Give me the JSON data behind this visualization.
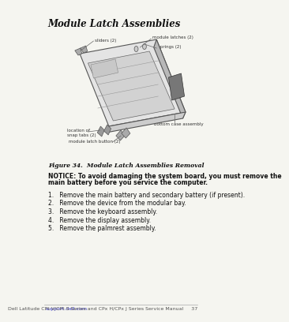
{
  "title": "Module Latch Assemblies",
  "figure_caption": "Figure 34.  Module Latch Assemblies Removal",
  "notice_text": "NOTICE: To avoid damaging the system board, you must remove the\nmain battery before you service the computer.",
  "steps": [
    "1.   Remove the main battery and secondary battery (if present).",
    "2.   Remove the device from the modular bay.",
    "3.   Remove the keyboard assembly.",
    "4.   Remove the display assembly.",
    "5.   Remove the palmrest assembly."
  ],
  "footer_left": "support.dell.com",
  "footer_right": "Dell Latitude CPt V/CPt S Series and CPx H/CPx J Series Service Manual     37",
  "bg_color": "#f5f5f0",
  "labels": {
    "sliders": "sliders (2)",
    "module_latches": "module latches (2)",
    "springs": "springs (2)",
    "location_snap": "location of\nsnap tabs (2)",
    "module_latch_button": "module latch button (2)",
    "bottom_case": "bottom case assembly"
  }
}
